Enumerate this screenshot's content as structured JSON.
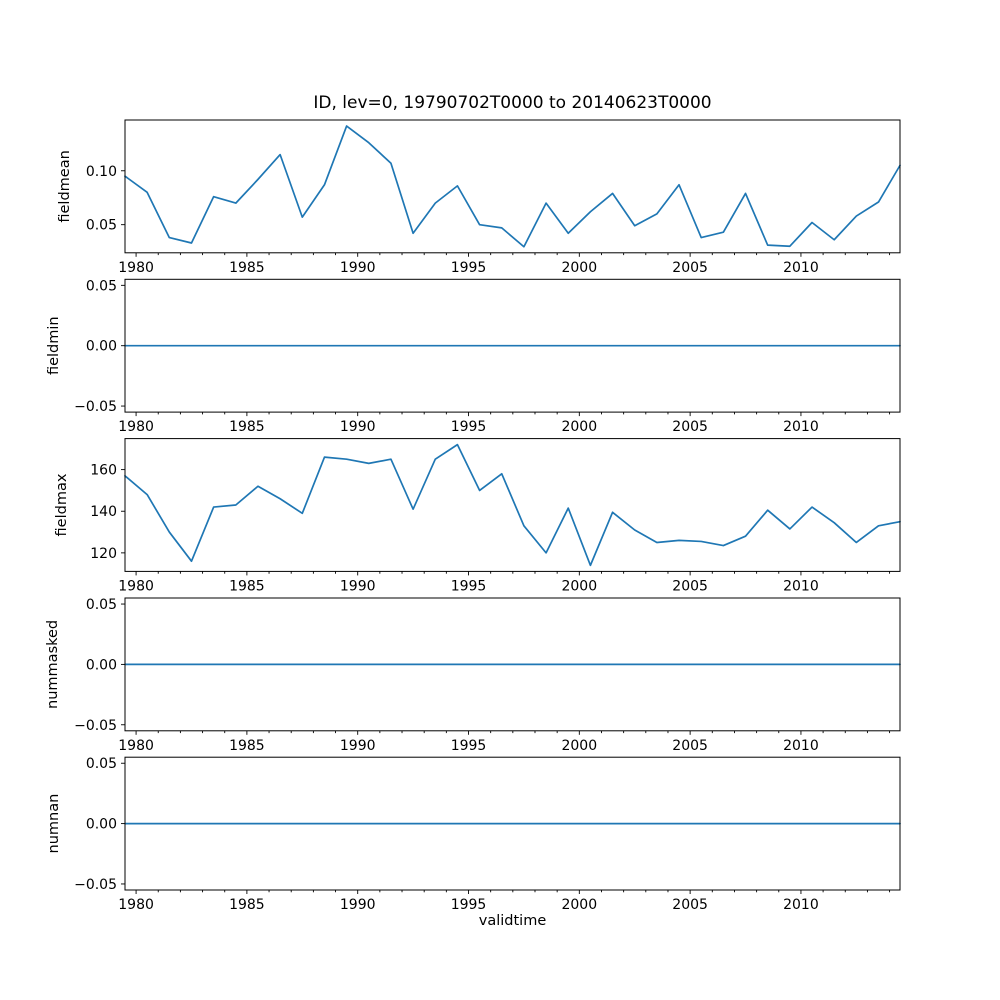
{
  "title": "ID, lev=0, 19790702T0000 to 20140623T0000",
  "xlabel": "validtime",
  "colors": {
    "line": "#1f77b4",
    "axis": "#000000",
    "text": "#000000",
    "background": "#ffffff"
  },
  "chart_data": {
    "type": "line",
    "title": "ID, lev=0, 19790702T0000 to 20140623T0000",
    "xlabel": "validtime",
    "xlim": [
      1979.5,
      2014.47
    ],
    "x_major_ticks": [
      1980,
      1985,
      1990,
      1995,
      2000,
      2005,
      2010
    ],
    "x_minor_tick_years": [
      1980,
      2014
    ],
    "legend": "none",
    "grid": false,
    "x": [
      1979.5,
      1980.5,
      1981.5,
      1982.5,
      1983.5,
      1984.5,
      1985.5,
      1986.5,
      1987.5,
      1988.5,
      1989.5,
      1990.5,
      1991.5,
      1992.5,
      1993.5,
      1994.5,
      1995.5,
      1996.5,
      1997.5,
      1998.5,
      1999.5,
      2000.5,
      2001.5,
      2002.5,
      2003.5,
      2004.5,
      2005.5,
      2006.5,
      2007.5,
      2008.5,
      2009.5,
      2010.5,
      2011.5,
      2012.5,
      2013.5,
      2014.47
    ],
    "subplots": [
      {
        "name": "fieldmean",
        "ylabel": "fieldmean",
        "ylim": [
          0.0239,
          0.1471
        ],
        "yticks": [
          0.05,
          0.1
        ],
        "ytick_labels": [
          "0.05",
          "0.10"
        ],
        "values": [
          0.095,
          0.08,
          0.038,
          0.033,
          0.076,
          0.07,
          0.092,
          0.115,
          0.057,
          0.087,
          0.1415,
          0.126,
          0.107,
          0.042,
          0.07,
          0.086,
          0.05,
          0.047,
          0.0295,
          0.07,
          0.042,
          0.062,
          0.079,
          0.049,
          0.06,
          0.087,
          0.038,
          0.043,
          0.079,
          0.031,
          0.03,
          0.052,
          0.036,
          0.058,
          0.071,
          0.105
        ]
      },
      {
        "name": "fieldmin",
        "ylabel": "fieldmin",
        "ylim": [
          -0.055,
          0.055
        ],
        "yticks": [
          -0.05,
          0,
          0.05
        ],
        "ytick_labels": [
          "−0.05",
          "0.00",
          "0.05"
        ],
        "values": [
          0,
          0,
          0,
          0,
          0,
          0,
          0,
          0,
          0,
          0,
          0,
          0,
          0,
          0,
          0,
          0,
          0,
          0,
          0,
          0,
          0,
          0,
          0,
          0,
          0,
          0,
          0,
          0,
          0,
          0,
          0,
          0,
          0,
          0,
          0,
          0
        ]
      },
      {
        "name": "fieldmax",
        "ylabel": "fieldmax",
        "ylim": [
          111.1,
          174.9
        ],
        "yticks": [
          120,
          140,
          160
        ],
        "ytick_labels": [
          "120",
          "140",
          "160"
        ],
        "values": [
          157,
          148,
          130,
          116,
          142,
          143,
          152,
          146,
          139,
          166,
          165,
          163,
          165,
          141,
          165,
          172,
          150,
          158,
          133,
          120,
          141.5,
          114,
          139.5,
          131,
          125,
          126,
          125.5,
          123.5,
          128,
          140.5,
          131.5,
          142,
          134.5,
          125,
          133,
          135
        ]
      },
      {
        "name": "nummasked",
        "ylabel": "nummasked",
        "ylim": [
          -0.055,
          0.055
        ],
        "yticks": [
          -0.05,
          0,
          0.05
        ],
        "ytick_labels": [
          "−0.05",
          "0.00",
          "0.05"
        ],
        "values": [
          0,
          0,
          0,
          0,
          0,
          0,
          0,
          0,
          0,
          0,
          0,
          0,
          0,
          0,
          0,
          0,
          0,
          0,
          0,
          0,
          0,
          0,
          0,
          0,
          0,
          0,
          0,
          0,
          0,
          0,
          0,
          0,
          0,
          0,
          0,
          0
        ]
      },
      {
        "name": "numnan",
        "ylabel": "numnan",
        "ylim": [
          -0.055,
          0.055
        ],
        "yticks": [
          -0.05,
          0,
          0.05
        ],
        "ytick_labels": [
          "−0.05",
          "0.00",
          "0.05"
        ],
        "values": [
          0,
          0,
          0,
          0,
          0,
          0,
          0,
          0,
          0,
          0,
          0,
          0,
          0,
          0,
          0,
          0,
          0,
          0,
          0,
          0,
          0,
          0,
          0,
          0,
          0,
          0,
          0,
          0,
          0,
          0,
          0,
          0,
          0,
          0,
          0,
          0
        ]
      }
    ]
  }
}
